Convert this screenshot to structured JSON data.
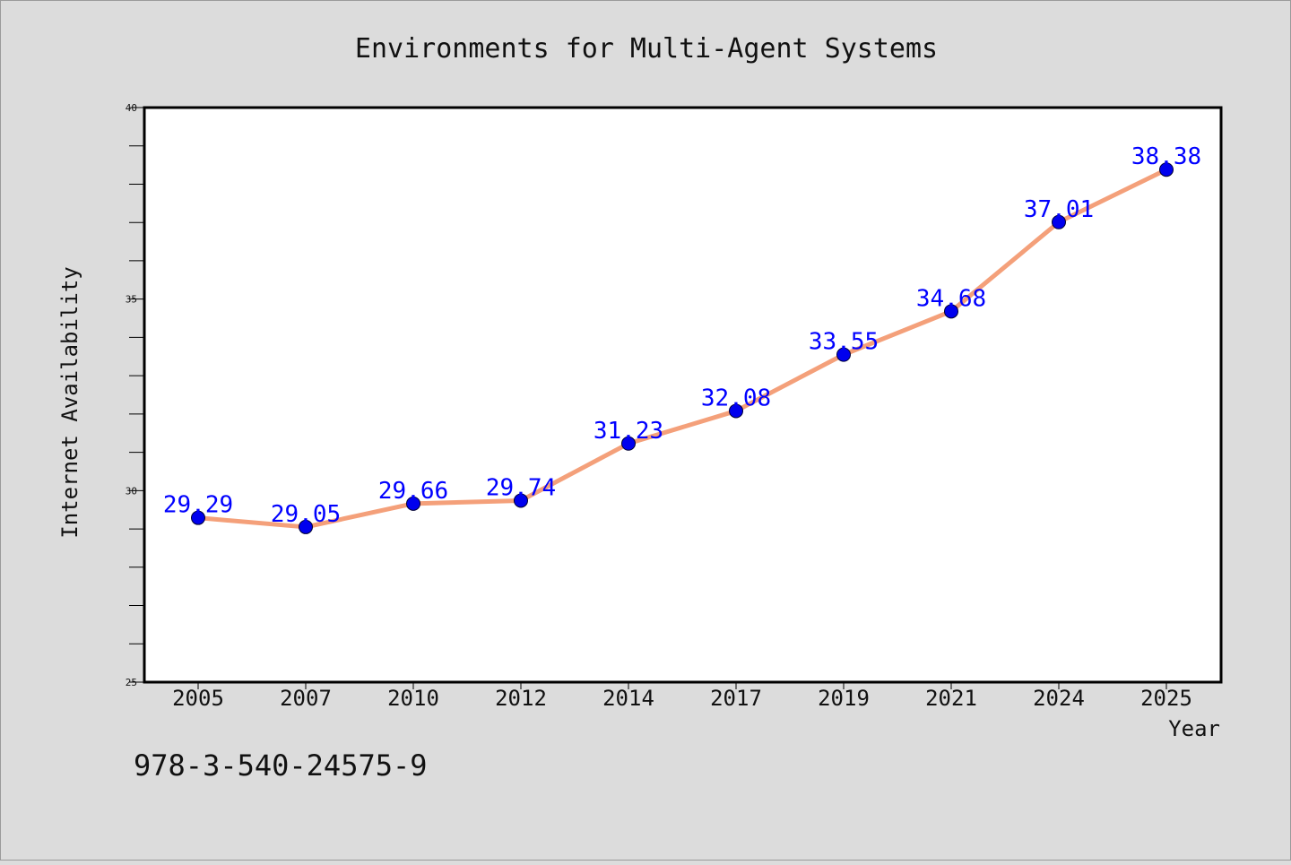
{
  "chart_data": {
    "type": "line",
    "title": "Environments for Multi-Agent Systems",
    "xlabel": "Year",
    "ylabel": "Internet Availability",
    "categories": [
      "2005",
      "2007",
      "2010",
      "2012",
      "2014",
      "2017",
      "2019",
      "2021",
      "2024",
      "2025"
    ],
    "series": [
      {
        "values": [
          29.29,
          29.05,
          29.66,
          29.74,
          31.23,
          32.08,
          33.55,
          34.68,
          37.01,
          38.38
        ]
      }
    ],
    "data_labels": [
      "29.29",
      "29.05",
      "29.66",
      "29.74",
      "31.23",
      "32.08",
      "33.55",
      "34.68",
      "37.01",
      "38.38"
    ],
    "ylim": [
      25,
      40
    ],
    "y_ticks": [
      "25",
      "30",
      "35",
      "40"
    ],
    "grid": false,
    "colors": {
      "line": "#f4a07a",
      "marker": "#0000ee",
      "data_label": "#0000ff",
      "background": "#dcdcdc",
      "plot_area": "#ffffff"
    }
  },
  "footer": {
    "text": "978-3-540-24575-9"
  }
}
